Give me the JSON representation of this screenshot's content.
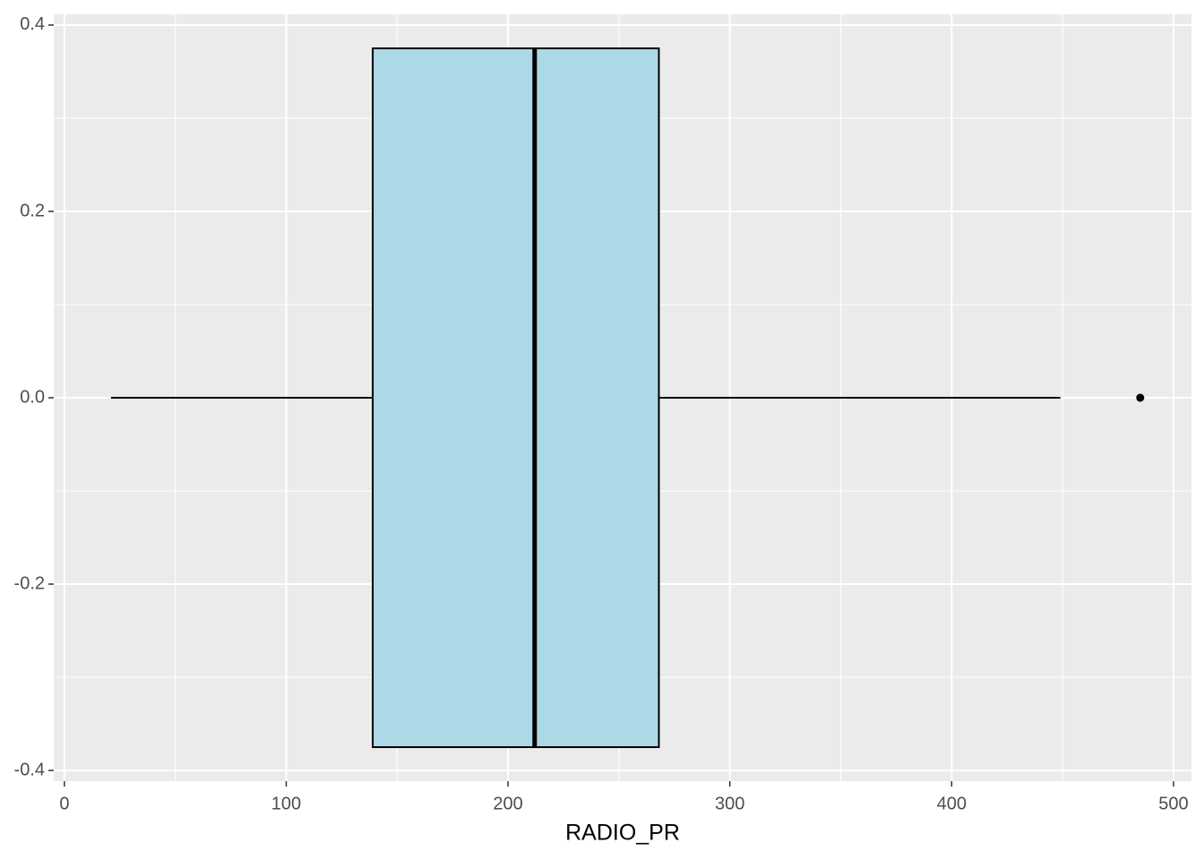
{
  "chart_data": {
    "type": "boxplot",
    "orientation": "horizontal",
    "x_label": "RADIO_PR",
    "boxes": [
      {
        "low": 21,
        "q1": 139,
        "median": 212,
        "q3": 268,
        "high": 449,
        "outliers": [
          485
        ],
        "fill": "#add8e6",
        "width": 0.75
      }
    ],
    "xlim": [
      -4.8,
      508.1
    ],
    "xticks": [
      0,
      100,
      200,
      300,
      400,
      500
    ],
    "xminorticks": [
      50,
      150,
      250,
      350,
      450
    ],
    "ylim": [
      -0.4115,
      0.4115
    ],
    "yticks": [
      -0.4,
      -0.2,
      {
        "value": 0,
        "label": "0.0"
      },
      0.2,
      0.4
    ],
    "yminorticks": [
      -0.3,
      -0.1,
      0.1,
      0.3
    ],
    "grid": true
  }
}
